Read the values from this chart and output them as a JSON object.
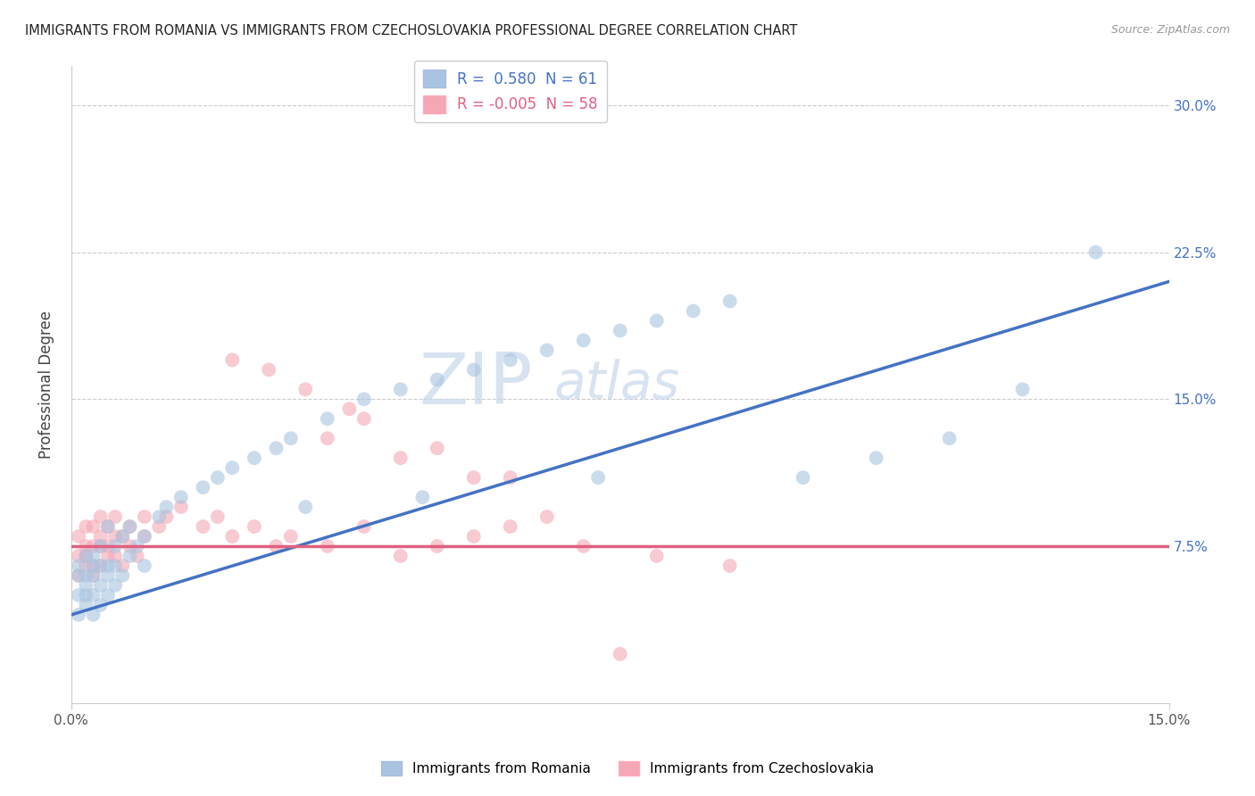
{
  "title": "IMMIGRANTS FROM ROMANIA VS IMMIGRANTS FROM CZECHOSLOVAKIA PROFESSIONAL DEGREE CORRELATION CHART",
  "source": "Source: ZipAtlas.com",
  "ylabel": "Professional Degree",
  "xlim": [
    0.0,
    0.15
  ],
  "ylim": [
    -0.005,
    0.32
  ],
  "y_ticks": [
    0.075,
    0.15,
    0.225,
    0.3
  ],
  "y_tick_labels": [
    "7.5%",
    "15.0%",
    "22.5%",
    "30.0%"
  ],
  "x_ticks": [
    0.0,
    0.15
  ],
  "x_tick_labels": [
    "0.0%",
    "15.0%"
  ],
  "legend1_label": "R =  0.580  N = 61",
  "legend2_label": "R = -0.005  N = 58",
  "blue_color": "#A8C4E0",
  "pink_color": "#F4A7B5",
  "blue_line_color": "#4472C4",
  "pink_line_color": "#E06080",
  "legend_label_romania": "Immigrants from Romania",
  "legend_label_czecho": "Immigrants from Czechoslovakia",
  "watermark_zip": "ZIP",
  "watermark_atlas": "atlas",
  "blue_scatter_x": [
    0.001,
    0.001,
    0.001,
    0.001,
    0.002,
    0.002,
    0.002,
    0.002,
    0.002,
    0.003,
    0.003,
    0.003,
    0.003,
    0.003,
    0.004,
    0.004,
    0.004,
    0.004,
    0.005,
    0.005,
    0.005,
    0.005,
    0.006,
    0.006,
    0.006,
    0.007,
    0.007,
    0.008,
    0.008,
    0.009,
    0.01,
    0.01,
    0.012,
    0.013,
    0.015,
    0.018,
    0.02,
    0.022,
    0.025,
    0.028,
    0.03,
    0.035,
    0.04,
    0.045,
    0.05,
    0.055,
    0.06,
    0.065,
    0.07,
    0.075,
    0.08,
    0.085,
    0.09,
    0.1,
    0.11,
    0.12,
    0.13,
    0.14,
    0.072,
    0.048,
    0.032
  ],
  "blue_scatter_y": [
    0.04,
    0.05,
    0.06,
    0.065,
    0.045,
    0.05,
    0.055,
    0.06,
    0.07,
    0.04,
    0.05,
    0.06,
    0.065,
    0.07,
    0.045,
    0.055,
    0.065,
    0.075,
    0.05,
    0.06,
    0.065,
    0.085,
    0.055,
    0.065,
    0.075,
    0.06,
    0.08,
    0.07,
    0.085,
    0.075,
    0.065,
    0.08,
    0.09,
    0.095,
    0.1,
    0.105,
    0.11,
    0.115,
    0.12,
    0.125,
    0.13,
    0.14,
    0.15,
    0.155,
    0.16,
    0.165,
    0.17,
    0.175,
    0.18,
    0.185,
    0.19,
    0.195,
    0.2,
    0.11,
    0.12,
    0.13,
    0.155,
    0.225,
    0.11,
    0.1,
    0.095
  ],
  "pink_scatter_x": [
    0.001,
    0.001,
    0.001,
    0.002,
    0.002,
    0.002,
    0.002,
    0.003,
    0.003,
    0.003,
    0.003,
    0.004,
    0.004,
    0.004,
    0.004,
    0.005,
    0.005,
    0.005,
    0.006,
    0.006,
    0.006,
    0.007,
    0.007,
    0.008,
    0.008,
    0.009,
    0.01,
    0.01,
    0.012,
    0.013,
    0.015,
    0.018,
    0.02,
    0.022,
    0.025,
    0.028,
    0.03,
    0.035,
    0.04,
    0.045,
    0.05,
    0.055,
    0.06,
    0.065,
    0.022,
    0.027,
    0.032,
    0.038,
    0.04,
    0.05,
    0.06,
    0.07,
    0.08,
    0.09,
    0.035,
    0.045,
    0.055,
    0.075
  ],
  "pink_scatter_y": [
    0.06,
    0.07,
    0.08,
    0.065,
    0.07,
    0.075,
    0.085,
    0.06,
    0.065,
    0.075,
    0.085,
    0.065,
    0.075,
    0.08,
    0.09,
    0.07,
    0.075,
    0.085,
    0.07,
    0.08,
    0.09,
    0.065,
    0.08,
    0.075,
    0.085,
    0.07,
    0.08,
    0.09,
    0.085,
    0.09,
    0.095,
    0.085,
    0.09,
    0.08,
    0.085,
    0.075,
    0.08,
    0.075,
    0.085,
    0.07,
    0.075,
    0.08,
    0.085,
    0.09,
    0.17,
    0.165,
    0.155,
    0.145,
    0.14,
    0.125,
    0.11,
    0.075,
    0.07,
    0.065,
    0.13,
    0.12,
    0.11,
    0.02
  ],
  "blue_trendline_x0": 0.0,
  "blue_trendline_y0": 0.04,
  "blue_trendline_x1": 0.15,
  "blue_trendline_y1": 0.21,
  "pink_trendline_x0": 0.0,
  "pink_trendline_y0": 0.075,
  "pink_trendline_x1": 0.15,
  "pink_trendline_y1": 0.075
}
